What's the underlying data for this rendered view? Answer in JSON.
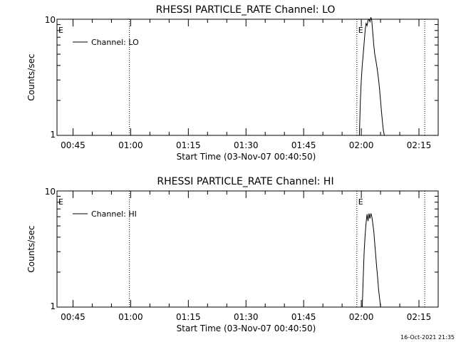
{
  "footer": {
    "timestamp": "16-Oct-2021 21:35"
  },
  "chart_data": [
    {
      "type": "line",
      "title": "RHESSI PARTICLE_RATE Channel: LO",
      "xlabel": "Start Time (03-Nov-07 00:40:50)",
      "ylabel": "Counts/sec",
      "yscale": "log",
      "ylim": [
        1,
        10
      ],
      "ytick_labels": [
        "10",
        "1"
      ],
      "xlim": [
        "00:40:50",
        "02:20:00"
      ],
      "xtick_labels": [
        "00:45",
        "01:00",
        "01:15",
        "01:30",
        "01:45",
        "02:00",
        "02:15"
      ],
      "legend": {
        "placement": "top-left",
        "entries": [
          "Channel: LO"
        ]
      },
      "grid": false,
      "markers": [
        {
          "label": "E",
          "time": "00:40:50",
          "style": "none"
        },
        {
          "label": "",
          "time": "00:59:40",
          "style": "dotted"
        },
        {
          "label": "E",
          "time": "01:58:50",
          "style": "dotted"
        },
        {
          "label": "",
          "time": "02:16:30",
          "style": "dotted"
        }
      ],
      "series": [
        {
          "name": "Channel: LO",
          "x": [
            "01:59:30",
            "01:59:45",
            "02:00:00",
            "02:00:15",
            "02:00:30",
            "02:00:45",
            "02:01:00",
            "02:01:15",
            "02:01:30",
            "02:01:45",
            "02:02:00",
            "02:02:15",
            "02:02:30",
            "02:02:45",
            "02:03:00",
            "02:03:15",
            "02:03:30",
            "02:03:45",
            "02:04:00",
            "02:04:15",
            "02:04:30",
            "02:04:45",
            "02:05:00",
            "02:05:15",
            "02:05:30",
            "02:05:45",
            "02:06:00"
          ],
          "y": [
            1.0,
            2.0,
            3.0,
            4.0,
            5.0,
            6.3,
            8.0,
            9.2,
            8.8,
            9.8,
            10.0,
            9.5,
            10.4,
            9.6,
            7.5,
            6.0,
            5.0,
            4.5,
            4.0,
            3.5,
            3.0,
            2.5,
            2.0,
            1.6,
            1.3,
            1.1,
            1.0
          ]
        }
      ]
    },
    {
      "type": "line",
      "title": "RHESSI PARTICLE_RATE Channel: HI",
      "xlabel": "Start Time (03-Nov-07 00:40:50)",
      "ylabel": "Counts/sec",
      "yscale": "log",
      "ylim": [
        1,
        10
      ],
      "ytick_labels": [
        "10",
        "1"
      ],
      "xlim": [
        "00:40:50",
        "02:20:00"
      ],
      "xtick_labels": [
        "00:45",
        "01:00",
        "01:15",
        "01:30",
        "01:45",
        "02:00",
        "02:15"
      ],
      "legend": {
        "placement": "top-left",
        "entries": [
          "Channel: HI"
        ]
      },
      "grid": false,
      "markers": [
        {
          "label": "E",
          "time": "00:40:50",
          "style": "none"
        },
        {
          "label": "",
          "time": "00:59:40",
          "style": "dotted"
        },
        {
          "label": "E",
          "time": "01:58:50",
          "style": "dotted"
        },
        {
          "label": "",
          "time": "02:16:30",
          "style": "dotted"
        }
      ],
      "series": [
        {
          "name": "Channel: HI",
          "x": [
            "02:00:15",
            "02:00:30",
            "02:00:45",
            "02:01:00",
            "02:01:15",
            "02:01:30",
            "02:01:45",
            "02:02:00",
            "02:02:15",
            "02:02:30",
            "02:02:45",
            "02:03:00",
            "02:03:15",
            "02:03:30",
            "02:03:45",
            "02:04:00",
            "02:04:15",
            "02:04:30",
            "02:04:45",
            "02:05:00"
          ],
          "y": [
            1.0,
            1.8,
            3.0,
            4.2,
            5.3,
            6.3,
            5.5,
            6.4,
            5.8,
            6.4,
            6.0,
            5.2,
            4.5,
            3.5,
            2.8,
            2.2,
            1.8,
            1.4,
            1.2,
            1.0
          ]
        }
      ]
    }
  ]
}
